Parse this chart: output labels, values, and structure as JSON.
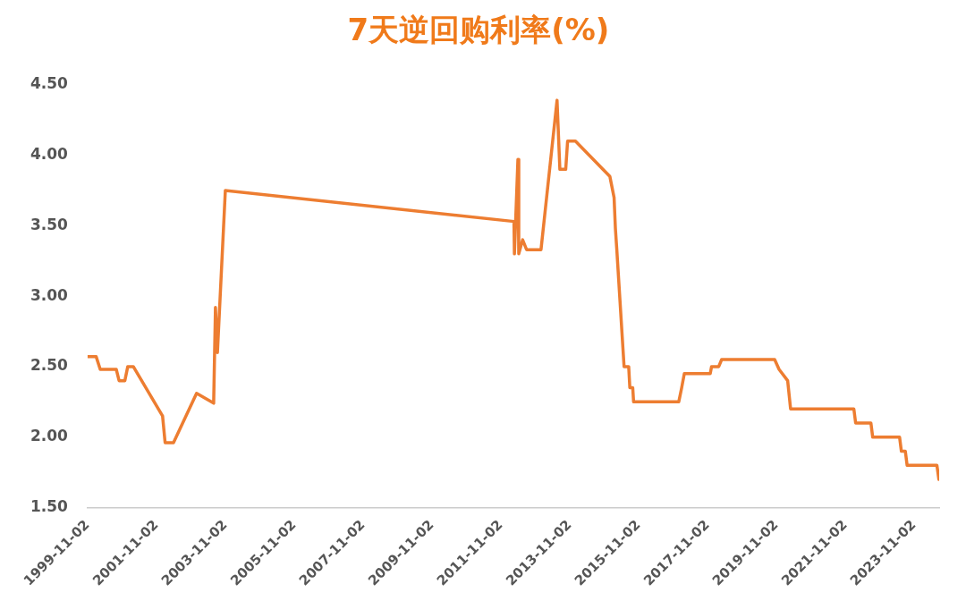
{
  "chart_data": {
    "type": "line",
    "title": "7天逆回购利率(%)",
    "xlim": [
      "1999-11-02",
      "2024-07-25"
    ],
    "xticks": [
      "1999-11-02",
      "2001-11-02",
      "2003-11-02",
      "2005-11-02",
      "2007-11-02",
      "2009-11-02",
      "2011-11-02",
      "2013-11-02",
      "2015-11-02",
      "2017-11-02",
      "2019-11-02",
      "2021-11-02",
      "2023-11-02"
    ],
    "ylim": [
      1.5,
      4.5
    ],
    "yticks": [
      {
        "value": 1.5,
        "label": "1.50"
      },
      {
        "value": 2,
        "label": "2.00"
      },
      {
        "value": 2.5,
        "label": "2.50"
      },
      {
        "value": 3,
        "label": "3.00"
      },
      {
        "value": 3.5,
        "label": "3.50"
      },
      {
        "value": 4,
        "label": "4.00"
      },
      {
        "value": 4.5,
        "label": "4.50"
      }
    ],
    "grid": false,
    "legend": false,
    "marker": "none",
    "line_style": "solid",
    "series": [
      {
        "color": "#ed7d31",
        "x": [
          "1999-11-02",
          "2000-02-01",
          "2000-03-15",
          "2000-09-01",
          "2000-10-01",
          "2000-12-01",
          "2001-01-01",
          "2001-03-01",
          "2002-01-05",
          "2002-02-01",
          "2002-05-01",
          "2003-01-01",
          "2003-07-01",
          "2003-07-20",
          "2003-08-10",
          "2003-11-02",
          "2012-03-20",
          "2012-03-25",
          "2012-05-01",
          "2012-05-10",
          "2012-06-20",
          "2012-08-01",
          "2013-01-01",
          "2013-06-20",
          "2013-07-20",
          "2013-09-20",
          "2013-10-10",
          "2014-01-01",
          "2015-01-01",
          "2015-02-15",
          "2015-03-01",
          "2015-03-15",
          "2015-06-01",
          "2015-07-20",
          "2015-08-01",
          "2015-09-01",
          "2015-09-10",
          "2017-01-01",
          "2017-02-01",
          "2017-03-01",
          "2017-12-01",
          "2017-12-15",
          "2018-03-01",
          "2018-04-01",
          "2019-10-15",
          "2019-12-01",
          "2020-03-01",
          "2020-04-01",
          "2022-02-01",
          "2022-02-20",
          "2022-08-01",
          "2022-08-20",
          "2023-06-01",
          "2023-06-20",
          "2023-08-01",
          "2023-08-20",
          "2024-07-01",
          "2024-07-22"
        ],
        "values": [
          2.57,
          2.57,
          2.48,
          2.48,
          2.4,
          2.4,
          2.5,
          2.5,
          2.15,
          1.96,
          1.96,
          2.31,
          2.24,
          2.92,
          2.6,
          3.75,
          3.53,
          3.3,
          3.97,
          3.3,
          3.4,
          3.33,
          3.33,
          4.39,
          3.9,
          3.9,
          4.1,
          4.1,
          3.85,
          3.7,
          3.48,
          3.34,
          2.5,
          2.5,
          2.35,
          2.35,
          2.25,
          2.25,
          2.35,
          2.45,
          2.45,
          2.5,
          2.5,
          2.55,
          2.55,
          2.48,
          2.4,
          2.2,
          2.2,
          2.1,
          2.1,
          2.0,
          2.0,
          1.9,
          1.9,
          1.8,
          1.8,
          1.7
        ]
      }
    ]
  }
}
